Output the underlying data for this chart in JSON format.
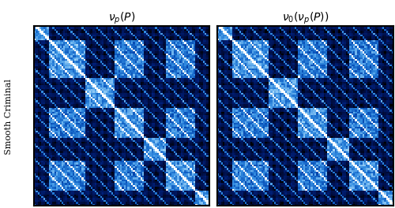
{
  "title_left": "$\\nu_p(P)$",
  "title_right": "$\\nu_0(\\nu_p(P))$",
  "ylabel": "Smooth Criminal",
  "figsize": [
    5.0,
    2.64
  ],
  "dpi": 100,
  "n": 96,
  "border_color": "black",
  "border_lw": 1.5,
  "title_fontsize": 10,
  "ylabel_fontsize": 8
}
